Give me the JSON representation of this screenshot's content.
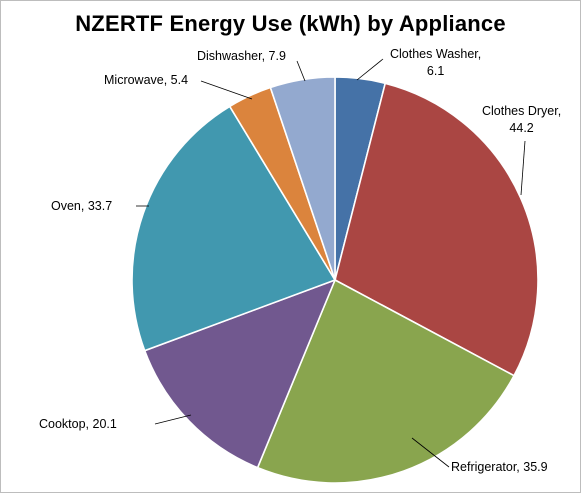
{
  "chart_data": {
    "type": "pie",
    "title": "NZERTF Energy Use (kWh) by Appliance",
    "categories": [
      "Clothes Washer",
      "Clothes Dryer",
      "Refrigerator",
      "Cooktop",
      "Oven",
      "Microwave",
      "Dishwasher"
    ],
    "values": [
      6.1,
      44.2,
      35.9,
      20.1,
      33.7,
      5.4,
      7.9
    ],
    "labels": [
      [
        "Clothes Washer,",
        "6.1"
      ],
      [
        "Clothes Dryer,",
        "44.2"
      ],
      [
        "Refrigerator, 35.9"
      ],
      [
        "Cooktop, 20.1"
      ],
      [
        "Oven, 33.7"
      ],
      [
        "Microwave, 5.4"
      ],
      [
        "Dishwasher, 7.9"
      ]
    ],
    "colors": [
      "#4572a7",
      "#aa4643",
      "#89a54e",
      "#71588f",
      "#4198af",
      "#db843d",
      "#93a9cf"
    ],
    "start_angle": "12 o'clock",
    "direction": "clockwise",
    "legend": "none"
  }
}
